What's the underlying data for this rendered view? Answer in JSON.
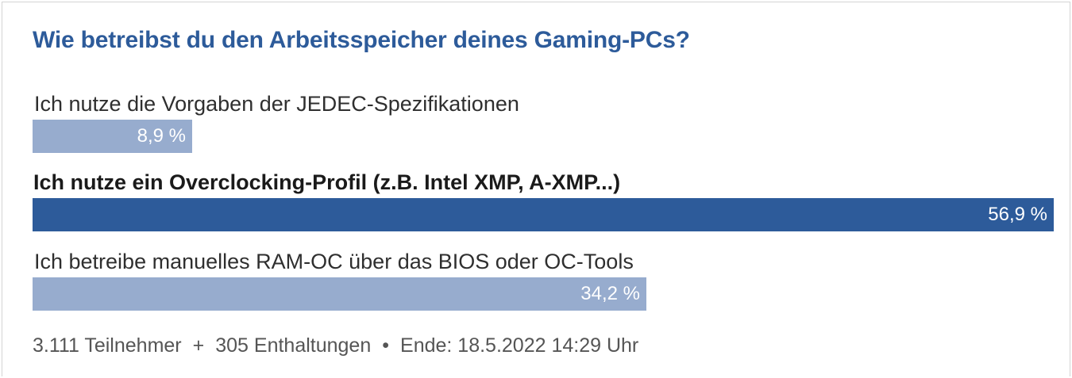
{
  "poll": {
    "title": "Wie betreibst du den Arbeitsspeicher deines Gaming-PCs?",
    "footer": {
      "participants": "3.111 Teilnehmer",
      "separator_plus": "+",
      "abstentions": "305 Enthaltungen",
      "separator_dot": "•",
      "end": "Ende: 18.5.2022 14:29 Uhr"
    }
  },
  "colors": {
    "title": "#2d5b9a",
    "bar_winner": "#2d5b9a",
    "bar_default": "#97acce"
  },
  "chart_data": {
    "type": "bar",
    "orientation": "horizontal",
    "title": "Wie betreibst du den Arbeitsspeicher deines Gaming-PCs?",
    "xlabel": "",
    "ylabel": "",
    "xlim": [
      0,
      56.9
    ],
    "categories": [
      "Ich nutze die Vorgaben der JEDEC-Spezifikationen",
      "Ich nutze ein Overclocking-Profil (z.B. Intel XMP, A-XMP...)",
      "Ich betreibe manuelles RAM-OC über das BIOS oder OC-Tools"
    ],
    "values": [
      8.9,
      56.9,
      34.2
    ],
    "value_labels": [
      "8,9 %",
      "56,9 %",
      "34,2 %"
    ],
    "highlighted_index": 1
  }
}
